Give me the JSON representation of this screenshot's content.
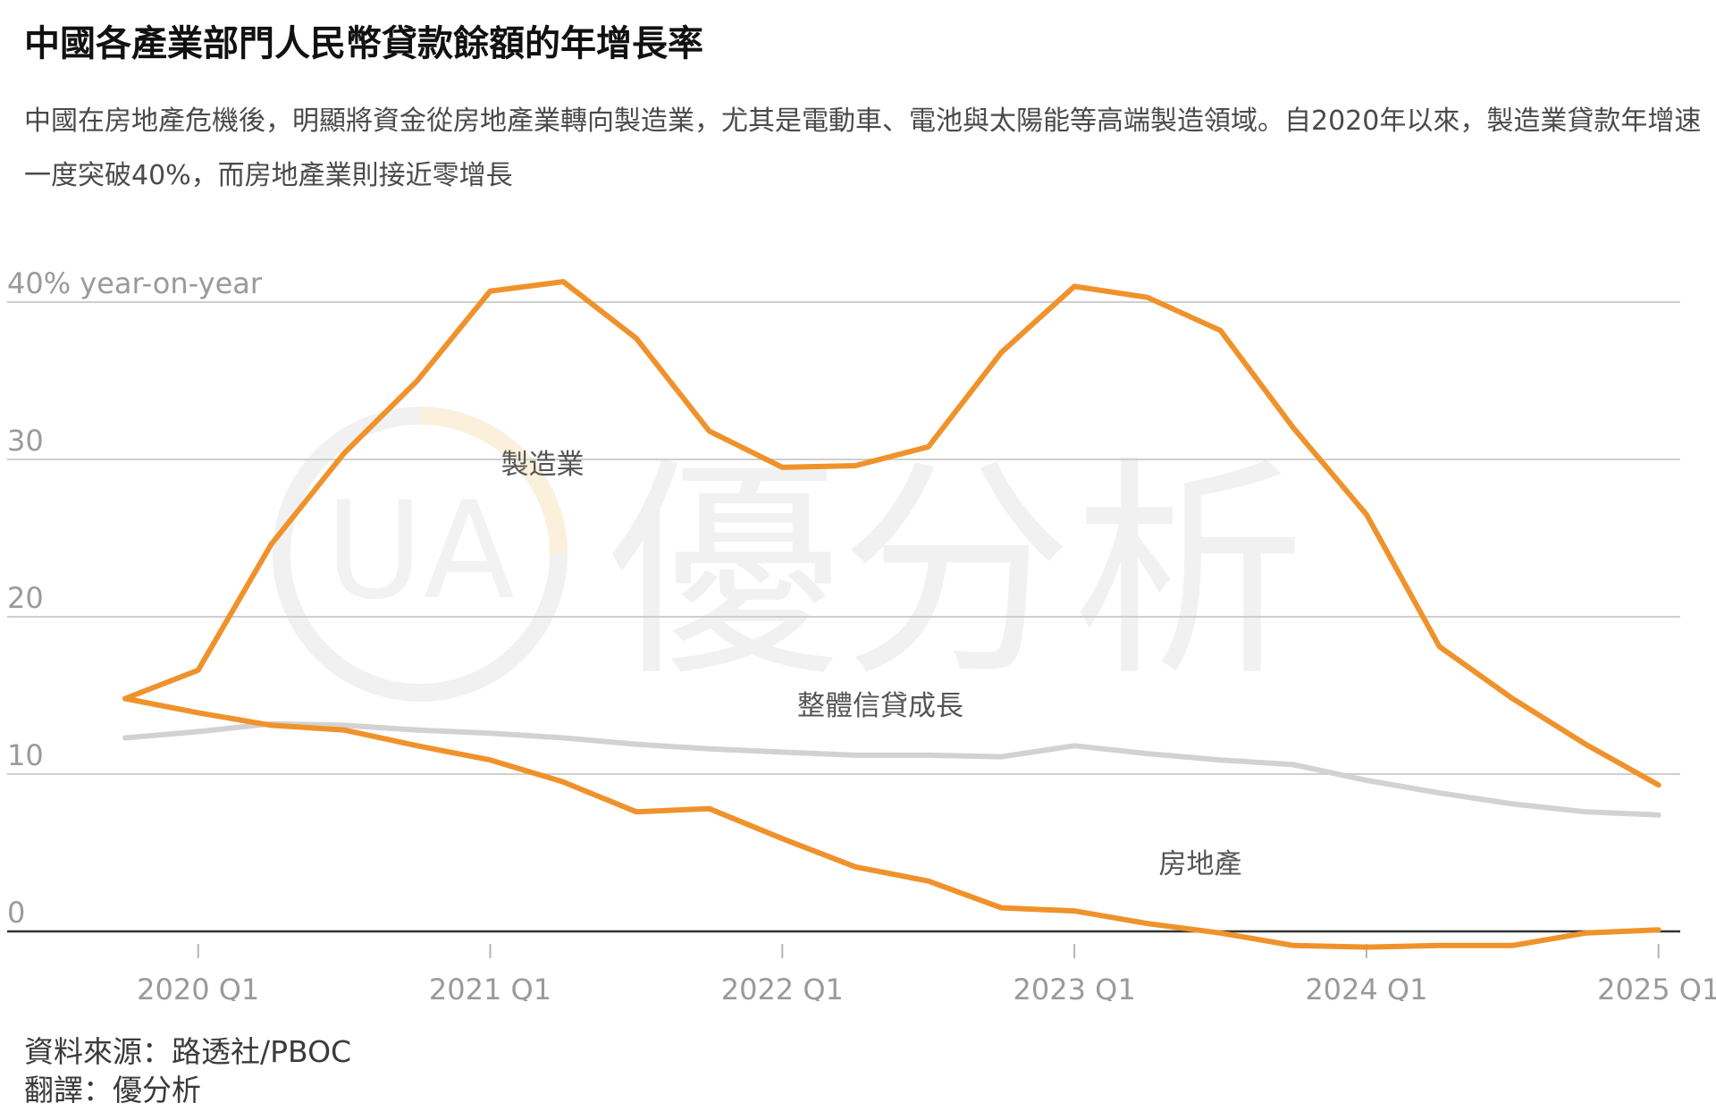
{
  "title": "中國各產業部門人民幣貸款餘額的年增長率",
  "subtitle": "中國在房地產危機後，明顯將資金從房地產業轉向製造業，尤其是電動車、電池與太陽能等高端製造領域。自2020年以來，製造業貸款年增速一度突破40%，而房地產業則接近零增長",
  "footer": {
    "source": "資料來源：路透社/PBOC",
    "translation": "翻譯：優分析"
  },
  "watermark": {
    "text": "優分析",
    "logo": "UA"
  },
  "colors": {
    "manufacturing": "#f0922b",
    "real_estate": "#f0922b",
    "overall": "#d2d2d2",
    "grid": "#cfcfcf",
    "axis": "#333333",
    "tick_text": "#9a9a9a",
    "label_text": "#555555"
  },
  "chart_data": {
    "type": "line",
    "x": [
      "2019 Q4",
      "2020 Q1",
      "2020 Q2",
      "2020 Q3",
      "2020 Q4",
      "2021 Q1",
      "2021 Q2",
      "2021 Q3",
      "2021 Q4",
      "2022 Q1",
      "2022 Q2",
      "2022 Q3",
      "2022 Q4",
      "2023 Q1",
      "2023 Q2",
      "2023 Q3",
      "2023 Q4",
      "2024 Q1",
      "2024 Q2",
      "2024 Q3",
      "2024 Q4",
      "2025 Q1"
    ],
    "x_tick_labels": [
      "2020 Q1",
      "2021 Q1",
      "2022 Q1",
      "2023 Q1",
      "2024 Q1",
      "2025 Q1"
    ],
    "y_ticks": [
      0,
      10,
      20,
      30,
      40
    ],
    "y_tick_labels": [
      "0",
      "10",
      "20",
      "30",
      "40% year-on-year"
    ],
    "ylim": [
      -1.2,
      42
    ],
    "grid": true,
    "series": [
      {
        "name": "製造業",
        "values": [
          14.8,
          16.6,
          24.6,
          30.4,
          35.0,
          40.7,
          41.3,
          37.7,
          31.8,
          29.5,
          29.6,
          30.8,
          36.8,
          41.0,
          40.3,
          38.2,
          32.0,
          26.5,
          18.1,
          14.8,
          11.9,
          9.3
        ]
      },
      {
        "name": "整體信貸成長",
        "values": [
          12.3,
          12.7,
          13.2,
          13.1,
          12.8,
          12.6,
          12.3,
          11.9,
          11.6,
          11.4,
          11.2,
          11.2,
          11.1,
          11.8,
          11.3,
          10.9,
          10.6,
          9.6,
          8.8,
          8.1,
          7.6,
          7.4
        ]
      },
      {
        "name": "房地產",
        "values": [
          14.8,
          13.9,
          13.1,
          12.8,
          11.8,
          10.9,
          9.5,
          7.6,
          7.8,
          5.9,
          4.1,
          3.2,
          1.5,
          1.3,
          0.5,
          -0.1,
          -0.9,
          -1.0,
          -0.9,
          -0.9,
          -0.1,
          0.1
        ]
      }
    ]
  }
}
